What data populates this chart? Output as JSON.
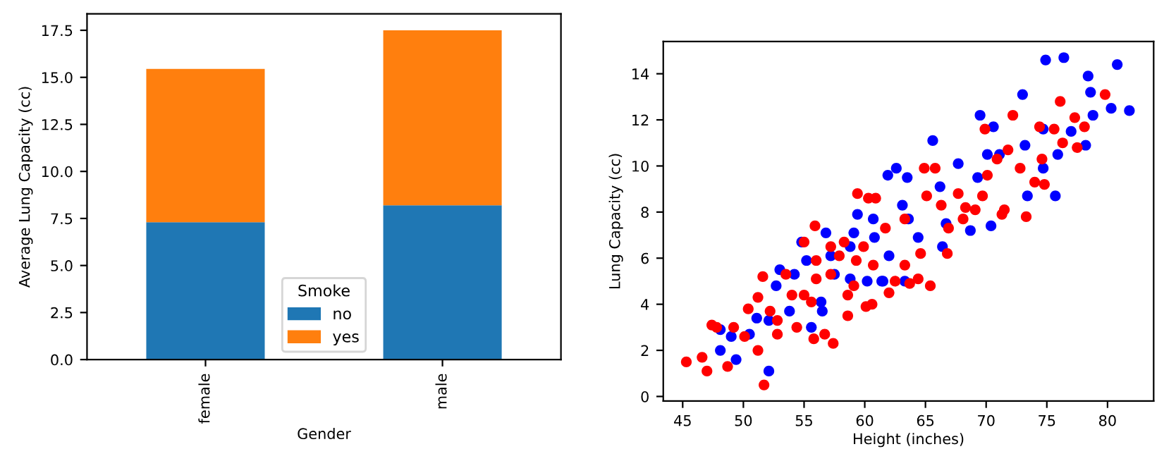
{
  "chart_data": [
    {
      "type": "bar",
      "stacked": true,
      "categories": [
        "female",
        "male"
      ],
      "xlabel": "Gender",
      "ylabel": "Average Lung Capacity (cc)",
      "legend_title": "Smoke",
      "legend": "bottom",
      "grid": false,
      "series": [
        {
          "name": "no",
          "color": "#1f77b4",
          "values": [
            7.3,
            8.2
          ]
        },
        {
          "name": "yes",
          "color": "#ff7f0e",
          "values": [
            8.15,
            9.3
          ]
        }
      ],
      "ylim": [
        0,
        18.375
      ],
      "yticks": [
        {
          "value": 0,
          "label": "0.0"
        },
        {
          "value": 2.5,
          "label": "2.5"
        },
        {
          "value": 5,
          "label": "5.0"
        },
        {
          "value": 7.5,
          "label": "7.5"
        },
        {
          "value": 10,
          "label": "10.0"
        },
        {
          "value": 12.5,
          "label": "12.5"
        },
        {
          "value": 15,
          "label": "15.0"
        },
        {
          "value": 17.5,
          "label": "17.5"
        }
      ]
    },
    {
      "type": "scatter",
      "xlabel": "Height (inches)",
      "ylabel": "Lung Capacity (cc)",
      "marker": "circle",
      "grid": false,
      "xlim": [
        43.4,
        83.8
      ],
      "ylim": [
        -0.2,
        15.4
      ],
      "xticks": [
        45,
        50,
        55,
        60,
        65,
        70,
        75,
        80
      ],
      "yticks": [
        0,
        2,
        4,
        6,
        8,
        10,
        12,
        14
      ],
      "series": [
        {
          "color": "#0000ff",
          "x": [
            48.1,
            48.1,
            49.0,
            49.4,
            50.5,
            51.1,
            52.1,
            52.1,
            53.0,
            52.7,
            53.8,
            54.2,
            55.2,
            55.6,
            56.8,
            56.4,
            56.5,
            57.5,
            59.4,
            59.1,
            61.9,
            60.7,
            61.5,
            58.8,
            57.2,
            54.8,
            74.9,
            76.4,
            80.8,
            78.4,
            81.8,
            80.3,
            78.6,
            73.0,
            69.5,
            65.6,
            62.6,
            63.5,
            75.7,
            73.4,
            70.4,
            68.7,
            66.4,
            63.3,
            61.4,
            60.2,
            58.8,
            63.6,
            64.4,
            66.7,
            67.7,
            70.6,
            71.1,
            73.2,
            74.7,
            75.9,
            78.2,
            78.8,
            60.8,
            62.0,
            63.1,
            66.2,
            69.3,
            70.1,
            74.7,
            77.0
          ],
          "values": [
            2.9,
            2.0,
            2.6,
            1.6,
            2.7,
            3.4,
            1.1,
            3.3,
            5.5,
            4.8,
            3.7,
            5.3,
            5.9,
            3.0,
            7.1,
            4.1,
            3.7,
            5.3,
            7.9,
            7.1,
            9.6,
            7.7,
            5.0,
            6.5,
            6.1,
            6.7,
            14.6,
            14.7,
            14.4,
            13.9,
            12.4,
            12.5,
            13.2,
            13.1,
            12.2,
            11.1,
            9.9,
            9.5,
            8.7,
            8.7,
            7.4,
            7.2,
            6.5,
            5.0,
            5.0,
            5.0,
            5.1,
            7.7,
            6.9,
            7.5,
            10.1,
            11.7,
            10.5,
            10.9,
            11.6,
            10.5,
            10.9,
            12.2,
            6.9,
            6.1,
            8.3,
            9.1,
            9.5,
            10.5,
            9.9,
            11.5
          ]
        },
        {
          "color": "#ff0000",
          "x": [
            45.3,
            46.6,
            47.0,
            47.4,
            47.8,
            48.7,
            49.2,
            50.1,
            50.4,
            51.2,
            51.2,
            51.7,
            51.6,
            52.8,
            52.8,
            52.2,
            53.5,
            54.4,
            55.0,
            55.9,
            55.6,
            55.8,
            56.7,
            57.4,
            57.2,
            58.6,
            59.4,
            60.3,
            60.9,
            60.1,
            59.1,
            57.9,
            58.3,
            57.2,
            55.0,
            54.0,
            56.0,
            59.9,
            60.7,
            56.0,
            59.3,
            58.6,
            60.6,
            62.0,
            62.5,
            63.3,
            63.7,
            64.4,
            65.4,
            64.6,
            66.8,
            64.9,
            65.8,
            65.1,
            66.3,
            67.7,
            68.1,
            69.1,
            69.7,
            69.9,
            70.1,
            70.9,
            71.3,
            72.2,
            71.8,
            72.8,
            73.3,
            74.0,
            74.6,
            74.8,
            74.4,
            75.6,
            76.1,
            76.3,
            77.3,
            77.5,
            78.1,
            79.8,
            61.7,
            63.3,
            66.9,
            68.3,
            71.5
          ],
          "values": [
            1.5,
            1.7,
            1.1,
            3.1,
            3.0,
            1.3,
            3.0,
            2.6,
            3.8,
            4.3,
            2.0,
            0.5,
            5.2,
            3.3,
            2.7,
            3.7,
            5.3,
            3.0,
            6.7,
            7.4,
            4.1,
            2.5,
            2.7,
            2.3,
            5.3,
            3.5,
            8.8,
            8.6,
            8.6,
            3.9,
            4.8,
            6.1,
            6.7,
            6.5,
            4.4,
            4.4,
            5.9,
            6.5,
            5.7,
            5.1,
            5.9,
            4.4,
            4.0,
            4.5,
            5.0,
            5.7,
            4.9,
            5.1,
            4.8,
            6.2,
            6.2,
            9.9,
            9.9,
            8.7,
            8.3,
            8.8,
            7.7,
            8.1,
            8.7,
            11.6,
            9.6,
            10.3,
            7.9,
            12.2,
            10.7,
            9.9,
            7.8,
            9.3,
            10.3,
            9.2,
            11.7,
            11.6,
            12.8,
            11.0,
            12.1,
            10.8,
            11.7,
            13.1,
            7.3,
            7.7,
            7.3,
            8.2,
            8.1
          ]
        }
      ]
    }
  ]
}
